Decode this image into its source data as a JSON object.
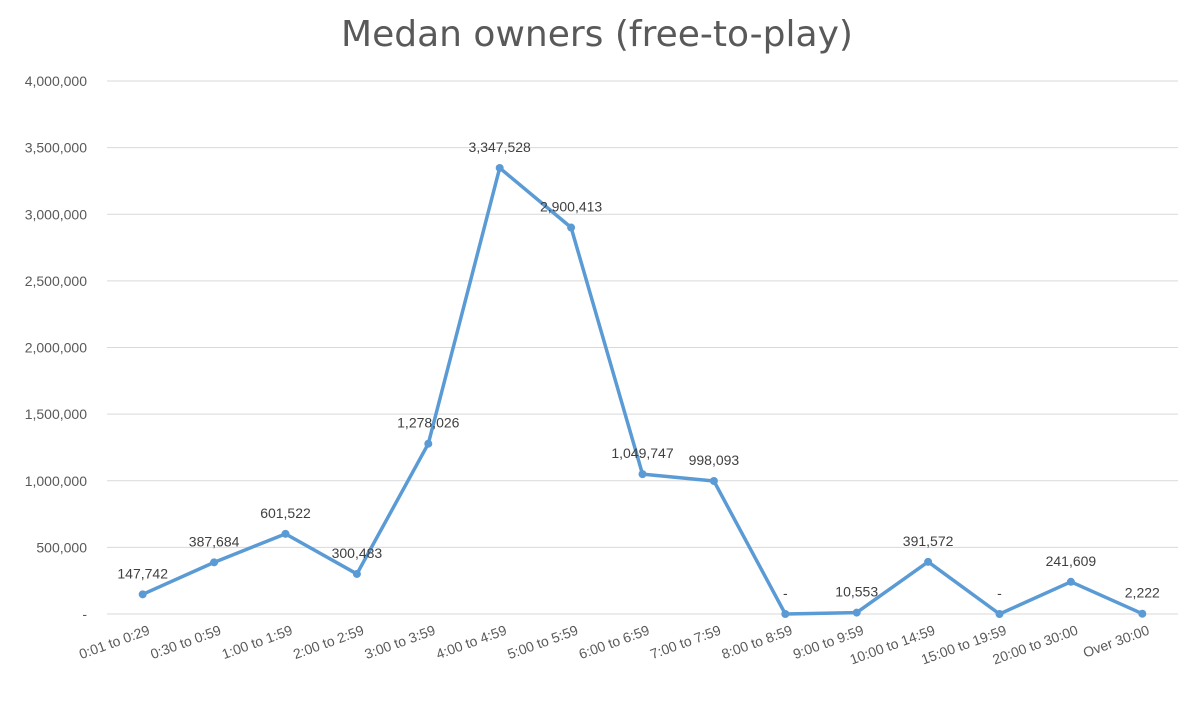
{
  "chart_data": {
    "type": "line",
    "title": "Medan owners (free-to-play)",
    "xlabel": "",
    "ylabel": "",
    "categories": [
      "0:01 to 0:29",
      "0:30 to 0:59",
      "1:00 to 1:59",
      "2:00 to 2:59",
      "3:00 to 3:59",
      "4:00 to 4:59",
      "5:00 to 5:59",
      "6:00 to 6:59",
      "7:00 to 7:59",
      "8:00 to 8:59",
      "9:00 to 9:59",
      "10:00 to 14:59",
      "15:00 to 19:59",
      "20:00 to 30:00",
      "Over 30:00"
    ],
    "values": [
      147742,
      387684,
      601522,
      300483,
      1278026,
      3347528,
      2900413,
      1049747,
      998093,
      0,
      10553,
      391572,
      0,
      241609,
      2222
    ],
    "data_labels": [
      "147,742",
      "387,684",
      "601,522",
      "300,483",
      "1,278,026",
      "3,347,528",
      "2,900,413",
      "1,049,747",
      "998,093",
      "-",
      "10,553",
      "391,572",
      "-",
      "241,609",
      "2,222"
    ],
    "yticks": [
      "-",
      "500,000",
      "1,000,000",
      "1,500,000",
      "2,000,000",
      "2,500,000",
      "3,000,000",
      "3,500,000",
      "4,000,000"
    ],
    "ylim": [
      0,
      4000000
    ],
    "grid": true,
    "legend": "none",
    "line_color": "#5b9bd5"
  }
}
